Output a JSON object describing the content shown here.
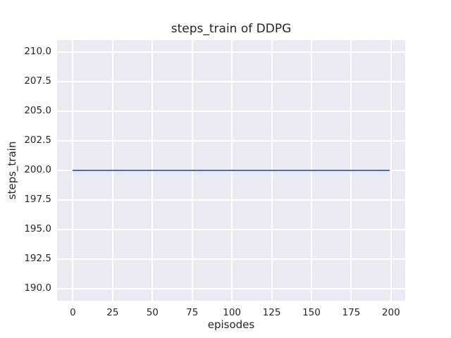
{
  "figure": {
    "background_color": "#ffffff"
  },
  "chart_data": {
    "type": "line",
    "title": "steps_train of DDPG",
    "xlabel": "episodes",
    "ylabel": "steps_train",
    "x_ticks": [
      0,
      25,
      50,
      75,
      100,
      125,
      150,
      175,
      200
    ],
    "x_tick_labels": [
      "0",
      "25",
      "50",
      "75",
      "100",
      "125",
      "150",
      "175",
      "200"
    ],
    "y_ticks": [
      190,
      192.5,
      195,
      197.5,
      200,
      202.5,
      205,
      207.5,
      210
    ],
    "y_tick_labels": [
      "190.0",
      "192.5",
      "195.0",
      "197.5",
      "200.0",
      "202.5",
      "205.0",
      "207.5",
      "210.0"
    ],
    "xlim": [
      -9.95,
      208.95
    ],
    "ylim": [
      189,
      211
    ],
    "grid": true,
    "legend": false,
    "series": [
      {
        "name": "steps_train",
        "x_start": 0,
        "x_end": 199,
        "constant_value": 200,
        "color": "#4c72b0"
      }
    ],
    "style": {
      "plot_background": "#eaeaf2",
      "grid_color": "#ffffff",
      "text_color": "#262626",
      "line_width": 2
    }
  }
}
